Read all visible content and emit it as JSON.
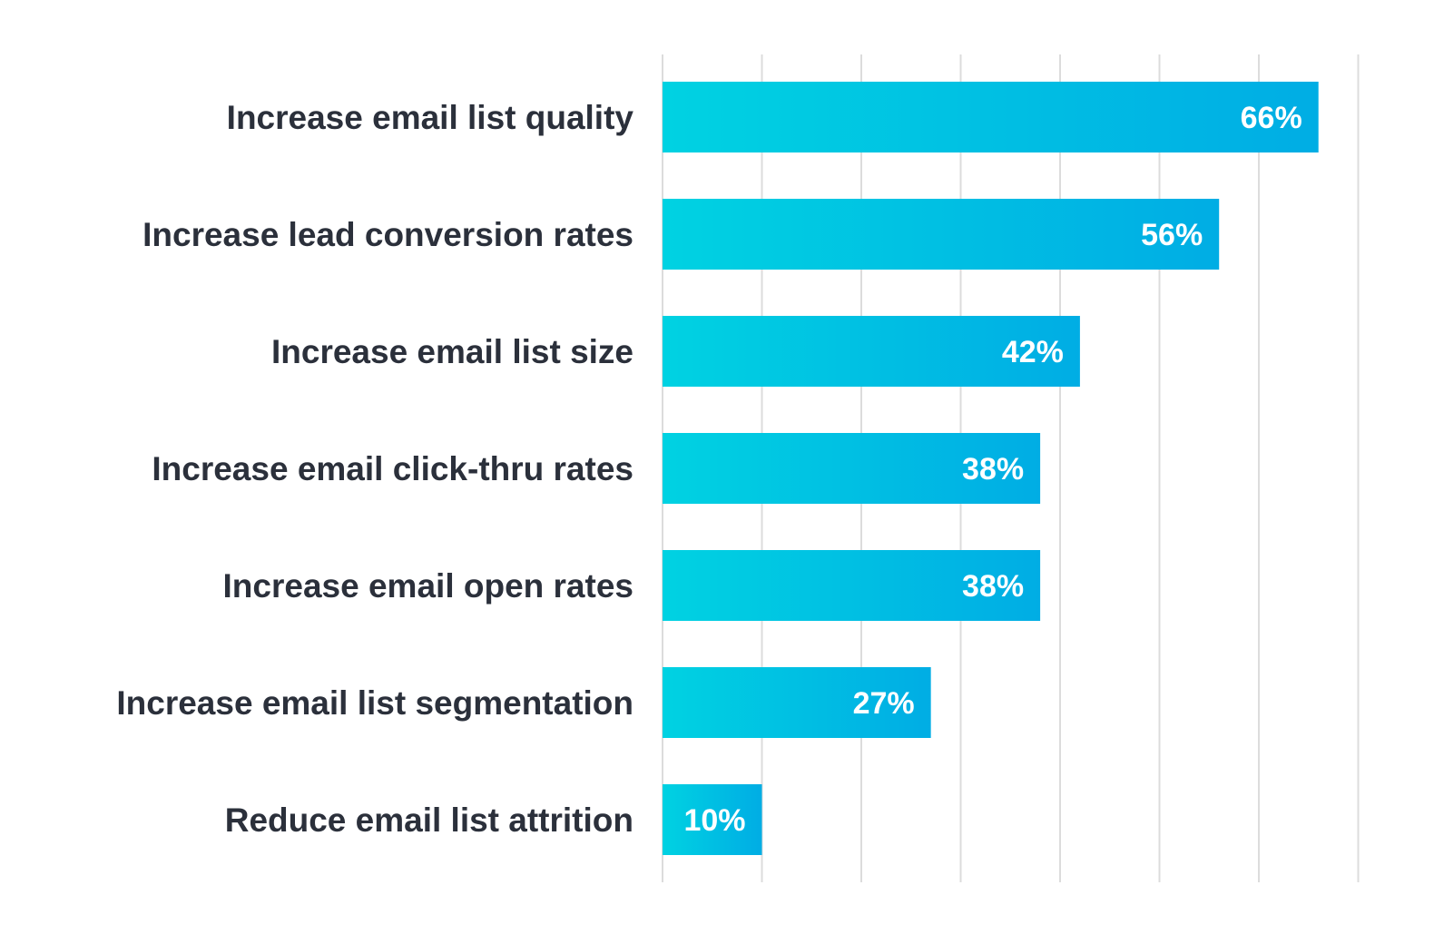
{
  "chart_data": {
    "type": "bar",
    "orientation": "horizontal",
    "categories": [
      "Increase email list quality",
      "Increase lead conversion rates",
      "Increase email list size",
      "Increase email click-thru rates",
      "Increase email open rates",
      "Increase email list segmentation",
      "Reduce email list attrition"
    ],
    "values": [
      66,
      56,
      42,
      38,
      38,
      27,
      10
    ],
    "value_labels": [
      "66%",
      "56%",
      "42%",
      "38%",
      "38%",
      "27%",
      "10%"
    ],
    "xlim": [
      0,
      70
    ],
    "grid": "vertical lines every 10%",
    "colors": {
      "bar_start": "#00d2e2",
      "bar_end": "#00ade4",
      "label": "#2b303b",
      "grid": "#dcdcdc"
    }
  }
}
